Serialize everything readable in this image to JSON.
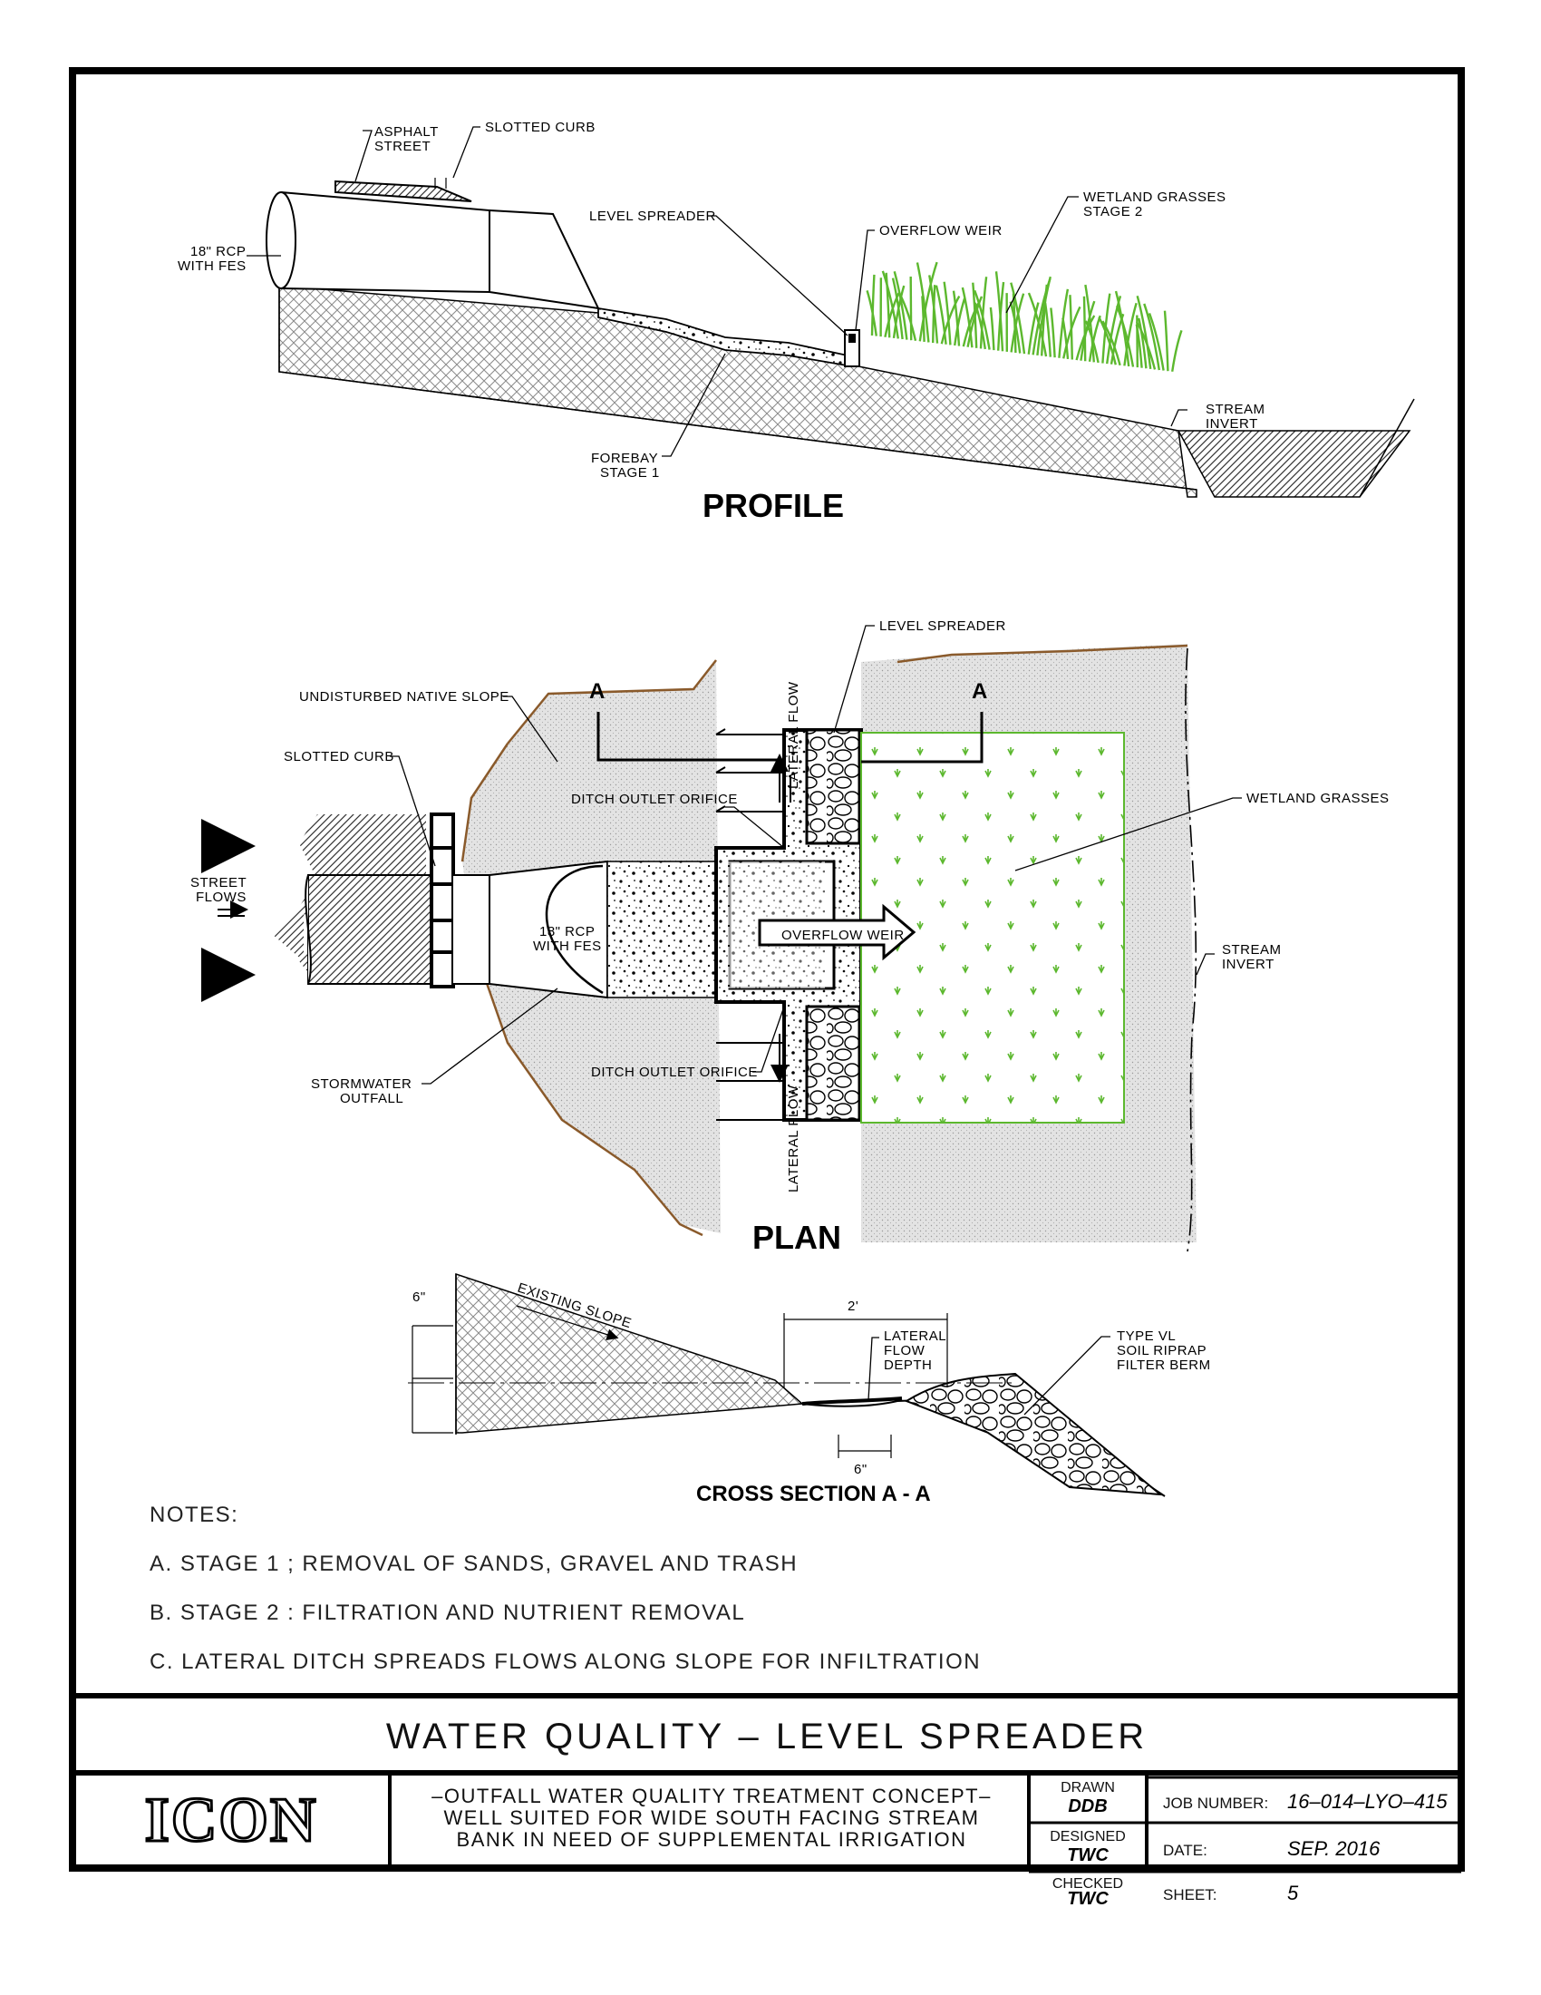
{
  "profile": {
    "title": "PROFILE",
    "labels": {
      "asphalt_1": "ASPHALT",
      "asphalt_2": "STREET",
      "slotted_curb": "SLOTTED CURB",
      "rcp_1": "18\" RCP",
      "rcp_2": "WITH FES",
      "level_spreader": "LEVEL SPREADER",
      "overflow_weir": "OVERFLOW WEIR",
      "wetland_1": "WETLAND GRASSES",
      "wetland_2": "STAGE 2",
      "stream_1": "STREAM",
      "stream_2": "INVERT",
      "forebay_1": "FOREBAY",
      "forebay_2": "STAGE 1"
    }
  },
  "plan": {
    "title": "PLAN",
    "labels": {
      "section_a_left": "A",
      "section_a_right": "A",
      "level_spreader": "LEVEL SPREADER",
      "undisturbed": "UNDISTURBED NATIVE SLOPE",
      "slotted_curb": "SLOTTED CURB",
      "lateral_flow_top": "LATERAL FLOW",
      "lateral_flow_bottom": "LATERAL FLOW",
      "ditch_orifice_top": "DITCH OUTLET ORIFICE",
      "ditch_orifice_bottom": "DITCH OUTLET ORIFICE",
      "wetland": "WETLAND GRASSES",
      "street_1": "STREET",
      "street_2": "FLOWS",
      "rcp_1": "18\" RCP",
      "rcp_2": "WITH FES",
      "overflow_weir": "OVERFLOW WEIR",
      "stream_1": "STREAM",
      "stream_2": "INVERT",
      "outfall_1": "STORMWATER",
      "outfall_2": "OUTFALL"
    }
  },
  "cross_section": {
    "title": "CROSS SECTION A - A",
    "labels": {
      "dim_6_left": "6\"",
      "existing_slope": "EXISTING SLOPE",
      "dim_2ft": "2'",
      "lateral_1": "LATERAL",
      "lateral_2": "FLOW",
      "lateral_3": "DEPTH",
      "riprap_1": "TYPE VL",
      "riprap_2": "SOIL RIPRAP",
      "riprap_3": "FILTER BERM",
      "dim_6_bottom": "6\""
    }
  },
  "notes": {
    "heading": "NOTES:",
    "items": [
      "A.  STAGE 1 ; REMOVAL OF SANDS, GRAVEL AND TRASH",
      "B.  STAGE 2 : FILTRATION AND NUTRIENT REMOVAL",
      "C.  LATERAL DITCH SPREADS FLOWS ALONG SLOPE FOR INFILTRATION"
    ]
  },
  "title_block": {
    "sheet_title": "WATER QUALITY  –  LEVEL SPREADER",
    "logo": "ICON",
    "description": [
      "–OUTFALL WATER QUALITY TREATMENT CONCEPT–",
      "WELL SUITED FOR WIDE SOUTH FACING STREAM",
      "BANK IN NEED OF SUPPLEMENTAL IRRIGATION"
    ],
    "drawn_label": "DRAWN",
    "drawn_value": "DDB",
    "designed_label": "DESIGNED",
    "designed_value": "TWC",
    "checked_label": "CHECKED",
    "checked_value": "TWC",
    "job_label": "JOB NUMBER:",
    "job_value": "16–014–LYO–415",
    "date_label": "DATE:",
    "date_value": "SEP. 2016",
    "sheet_label": "SHEET:",
    "sheet_value": "5"
  },
  "colors": {
    "grass": "#5cb82e",
    "grass_dark": "#3f8f1a",
    "native_slope_edge": "#8a5a2b",
    "stipple": "#d9d9d9"
  }
}
